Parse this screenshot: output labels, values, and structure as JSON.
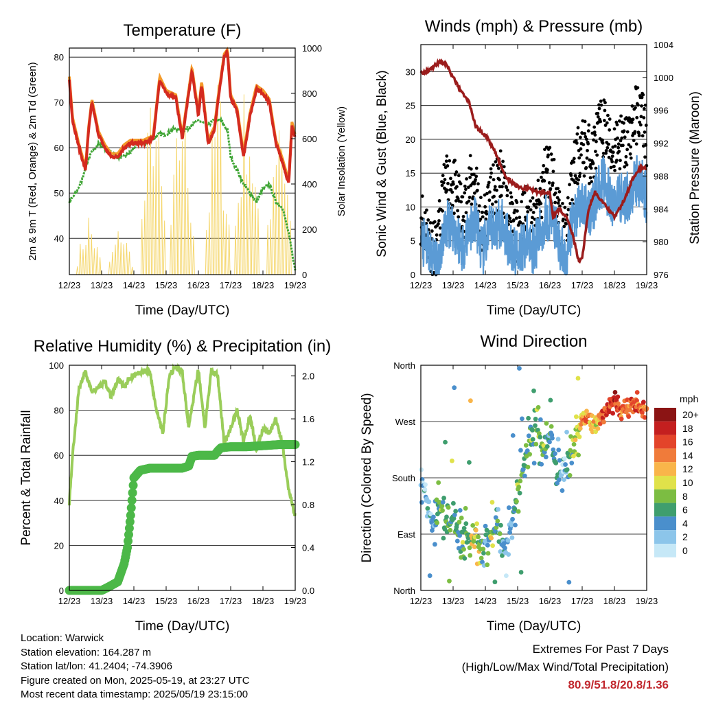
{
  "time_ticks": [
    "12/23",
    "13/23",
    "14/23",
    "15/23",
    "16/23",
    "17/23",
    "18/23",
    "19/23"
  ],
  "time_label": "Time (Day/UTC)",
  "info": {
    "location": "Location: Warwick",
    "elevation": "Station elevation: 164.287 m",
    "latlon": "Station lat/lon: 41.2404; -74.3906",
    "created": "Figure created on Mon, 2025-05-19, at 23:27 UTC",
    "recent": "Most recent data timestamp: 2025/05/19 23:15:00"
  },
  "extremes": {
    "title": "Extremes For Past 7 Days",
    "subtitle": "(High/Low/Max Wind/Total Precipitation)",
    "values": "80.9/51.8/20.8/1.36",
    "color": "#c1272d"
  },
  "chart_data": [
    {
      "type": "line",
      "title": "Temperature (F)",
      "xlabel": "Time (Day/UTC)",
      "ylabel": "2m & 9m T (Red, Orange) & 2m Td (Green)",
      "y2label": "Solar Insolation (Yellow)",
      "xlim": [
        12,
        19
      ],
      "ylim": [
        32,
        82
      ],
      "yticks": [
        40,
        50,
        60,
        70,
        80
      ],
      "y2lim": [
        0,
        1000
      ],
      "y2ticks": [
        0,
        200,
        400,
        600,
        800,
        1000
      ],
      "grid": true,
      "series": [
        {
          "key": "temperature_2m_9m",
          "color": "#d42a1f",
          "x": [
            12.0,
            12.1,
            12.3,
            12.5,
            12.6,
            12.7,
            12.9,
            13.1,
            13.3,
            13.5,
            13.7,
            13.9,
            14.1,
            14.3,
            14.6,
            14.8,
            15.0,
            15.3,
            15.5,
            15.7,
            15.8,
            16.0,
            16.1,
            16.3,
            16.5,
            16.6,
            16.8,
            16.9,
            17.0,
            17.2,
            17.4,
            17.6,
            17.8,
            18.0,
            18.2,
            18.4,
            18.6,
            18.8,
            18.9,
            19.0
          ],
          "y": [
            75,
            66,
            60,
            55,
            64,
            70,
            63,
            60,
            58,
            58,
            60,
            61,
            61,
            61,
            62,
            75,
            72,
            71,
            62,
            72,
            77,
            67,
            74,
            61,
            64,
            70,
            80,
            81,
            71,
            68,
            58,
            67,
            73,
            72,
            70,
            61,
            57,
            52,
            65,
            62
          ]
        },
        {
          "key": "dewpoint_2m",
          "color": "#3fa535",
          "x": [
            12.0,
            12.2,
            12.4,
            12.5,
            12.7,
            12.9,
            13.1,
            13.3,
            13.5,
            13.7,
            13.9,
            14.1,
            14.4,
            14.6,
            14.8,
            15.0,
            15.2,
            15.4,
            15.6,
            15.8,
            16.0,
            16.3,
            16.5,
            16.7,
            16.9,
            17.0,
            17.2,
            17.4,
            17.6,
            17.8,
            18.0,
            18.2,
            18.4,
            18.6,
            18.8,
            19.0
          ],
          "y": [
            48,
            50,
            53,
            56,
            59,
            61,
            60,
            59,
            58,
            58,
            59,
            61,
            61,
            62,
            63,
            63,
            64,
            64,
            64,
            65,
            66,
            65,
            66,
            66,
            64,
            58,
            55,
            52,
            50,
            48,
            51,
            52,
            48,
            47,
            41,
            33
          ]
        },
        {
          "key": "solar_insolation",
          "color": "#f5d76e",
          "axis": "y2",
          "peaks": [
            {
              "x": 12.6,
              "v": 300
            },
            {
              "x": 13.6,
              "v": 260
            },
            {
              "x": 14.6,
              "v": 1010
            },
            {
              "x": 15.5,
              "v": 980
            },
            {
              "x": 16.6,
              "v": 1000
            },
            {
              "x": 17.5,
              "v": 1020
            },
            {
              "x": 18.5,
              "v": 1030
            }
          ]
        }
      ]
    },
    {
      "type": "scatter",
      "title": "Winds (mph) & Pressure (mb)",
      "xlabel": "Time (Day/UTC)",
      "ylabel": "Sonic Wind & Gust (Blue, Black)",
      "y2label": "Station Pressure (Maroon)",
      "xlim": [
        12,
        19
      ],
      "ylim": [
        0,
        34
      ],
      "yticks": [
        0,
        5,
        10,
        15,
        20,
        25,
        30
      ],
      "y2lim": [
        976,
        1004
      ],
      "y2ticks": [
        976,
        980,
        984,
        988,
        992,
        996,
        1000,
        1004
      ],
      "grid": true,
      "series": [
        {
          "key": "pressure",
          "color": "#9b1c1c",
          "axis": "y2",
          "x": [
            12.0,
            12.3,
            12.6,
            12.8,
            13.0,
            13.3,
            13.5,
            13.7,
            14.0,
            14.3,
            14.6,
            14.9,
            15.1,
            15.4,
            15.6,
            15.8,
            16.0,
            16.1,
            16.3,
            16.5,
            16.7,
            16.9,
            17.0,
            17.2,
            17.4,
            17.6,
            17.8,
            18.0,
            18.3,
            18.6,
            18.8,
            19.0
          ],
          "y": [
            1000.5,
            1001,
            1002,
            1001.5,
            1000,
            998,
            997,
            994,
            993,
            991,
            988,
            987,
            986.5,
            986.5,
            986,
            986,
            986,
            983,
            984,
            983,
            981,
            977.5,
            978,
            984,
            986,
            985,
            984,
            983,
            985,
            988,
            989,
            989
          ]
        },
        {
          "key": "wind_speed",
          "color": "#5b9bd5",
          "x": [
            12.0,
            12.3,
            12.5,
            12.7,
            12.9,
            13.1,
            13.3,
            13.5,
            13.7,
            13.9,
            14.1,
            14.3,
            14.5,
            14.7,
            14.9,
            15.1,
            15.3,
            15.5,
            15.7,
            15.9,
            16.1,
            16.3,
            16.5,
            16.7,
            16.9,
            17.1,
            17.3,
            17.5,
            17.7,
            17.9,
            18.1,
            18.3,
            18.5,
            18.7,
            18.9,
            19.0
          ],
          "y": [
            5,
            3,
            1,
            6,
            8,
            6,
            4,
            7,
            8,
            3,
            6,
            7,
            8,
            5,
            3,
            4,
            5,
            4,
            6,
            9,
            8,
            4,
            2,
            8,
            10,
            10,
            9,
            13,
            14,
            10,
            12,
            11,
            12,
            14,
            13,
            11
          ]
        },
        {
          "key": "wind_gust",
          "color": "#000000",
          "x": [
            12.0,
            12.3,
            12.5,
            12.7,
            12.9,
            13.1,
            13.3,
            13.5,
            13.7,
            13.9,
            14.1,
            14.3,
            14.5,
            14.7,
            14.9,
            15.1,
            15.3,
            15.5,
            15.7,
            15.9,
            16.1,
            16.3,
            16.5,
            16.7,
            16.9,
            17.1,
            17.3,
            17.5,
            17.7,
            17.9,
            18.1,
            18.3,
            18.5,
            18.7,
            18.9,
            19.0
          ],
          "y": [
            9,
            5,
            3,
            12,
            14,
            12,
            8,
            13,
            14,
            6,
            11,
            12,
            15,
            9,
            6,
            8,
            9,
            7,
            11,
            16,
            14,
            8,
            5,
            14,
            18,
            19,
            17,
            21,
            22,
            18,
            20,
            19,
            21,
            24,
            23,
            20
          ]
        }
      ]
    },
    {
      "type": "line",
      "title": "Relative Humidity (%) & Precipitation (in)",
      "xlabel": "Time (Day/UTC)",
      "ylabel": "Percent & Total Rainfall",
      "xlim": [
        12,
        19
      ],
      "ylim": [
        0,
        100
      ],
      "yticks": [
        0,
        20,
        40,
        60,
        80,
        100
      ],
      "y2lim": [
        0,
        2.1
      ],
      "y2ticks": [
        0.0,
        0.4,
        0.8,
        1.2,
        1.6,
        2.0
      ],
      "grid": true,
      "series": [
        {
          "key": "relative_humidity",
          "color": "#9acd5a",
          "x": [
            12.0,
            12.1,
            12.3,
            12.5,
            12.7,
            12.9,
            13.1,
            13.3,
            13.5,
            13.7,
            13.9,
            14.1,
            14.3,
            14.5,
            14.7,
            14.9,
            15.1,
            15.3,
            15.5,
            15.7,
            15.9,
            16.0,
            16.2,
            16.4,
            16.6,
            16.8,
            17.0,
            17.2,
            17.4,
            17.6,
            17.8,
            18.0,
            18.2,
            18.4,
            18.6,
            18.8,
            19.0
          ],
          "y": [
            39,
            60,
            90,
            97,
            88,
            90,
            93,
            86,
            94,
            90,
            95,
            96,
            98,
            97,
            80,
            70,
            96,
            99,
            97,
            72,
            90,
            98,
            72,
            98,
            95,
            65,
            72,
            80,
            66,
            78,
            62,
            72,
            70,
            76,
            65,
            45,
            33
          ]
        },
        {
          "key": "precipitation",
          "color": "#4cb848",
          "axis": "y2",
          "x": [
            12.0,
            13.0,
            13.2,
            13.5,
            13.7,
            13.8,
            13.9,
            14.0,
            14.2,
            14.5,
            15.0,
            15.5,
            15.7,
            15.8,
            16.0,
            16.5,
            16.6,
            16.7,
            17.0,
            17.5,
            18.0,
            18.5,
            19.0
          ],
          "y": [
            0.0,
            0.0,
            0.03,
            0.08,
            0.25,
            0.4,
            0.7,
            1.05,
            1.12,
            1.14,
            1.14,
            1.14,
            1.16,
            1.25,
            1.26,
            1.26,
            1.3,
            1.33,
            1.34,
            1.34,
            1.35,
            1.36,
            1.36
          ]
        }
      ]
    },
    {
      "type": "scatter",
      "title": "Wind Direction",
      "xlabel": "Time (Day/UTC)",
      "ylabel": "Direction (Colored By Speed)",
      "xlim": [
        12,
        19
      ],
      "ylim": [
        0,
        360
      ],
      "yticks": [
        "North",
        "East",
        "South",
        "West",
        "North"
      ],
      "grid": true,
      "legend": {
        "title": "mph",
        "labels": [
          "0",
          "2",
          "4",
          "6",
          "8",
          "10",
          "12",
          "14",
          "16",
          "18",
          "20+"
        ],
        "colors": [
          "#c6e8f7",
          "#8cc5ea",
          "#4a8fcc",
          "#3f9e6e",
          "#7cbd42",
          "#e0e24a",
          "#f9b54a",
          "#f07b3a",
          "#e3442a",
          "#c41f1f",
          "#8b1414"
        ]
      },
      "series": [
        {
          "key": "direction",
          "x": [
            12.0,
            12.1,
            12.2,
            12.4,
            12.6,
            12.8,
            13.0,
            13.2,
            13.4,
            13.6,
            13.8,
            14.0,
            14.2,
            14.4,
            14.6,
            14.8,
            15.0,
            15.2,
            15.4,
            15.6,
            15.8,
            16.0,
            16.2,
            16.4,
            16.6,
            16.8,
            17.0,
            17.2,
            17.4,
            17.6,
            17.8,
            18.0,
            18.2,
            18.4,
            18.6,
            18.8,
            19.0
          ],
          "y": [
            190,
            160,
            120,
            100,
            140,
            110,
            100,
            95,
            90,
            85,
            80,
            70,
            90,
            110,
            60,
            100,
            160,
            200,
            230,
            260,
            230,
            250,
            200,
            180,
            210,
            240,
            270,
            280,
            260,
            285,
            290,
            300,
            285,
            290,
            300,
            295,
            290
          ],
          "speeds": [
            3,
            2,
            3,
            4,
            7,
            6,
            7,
            6,
            8,
            10,
            9,
            4,
            9,
            5,
            3,
            4,
            7,
            5,
            6,
            8,
            7,
            5,
            4,
            3,
            6,
            9,
            13,
            13,
            10,
            15,
            16,
            17,
            15,
            14,
            16,
            15,
            14
          ]
        }
      ]
    }
  ]
}
